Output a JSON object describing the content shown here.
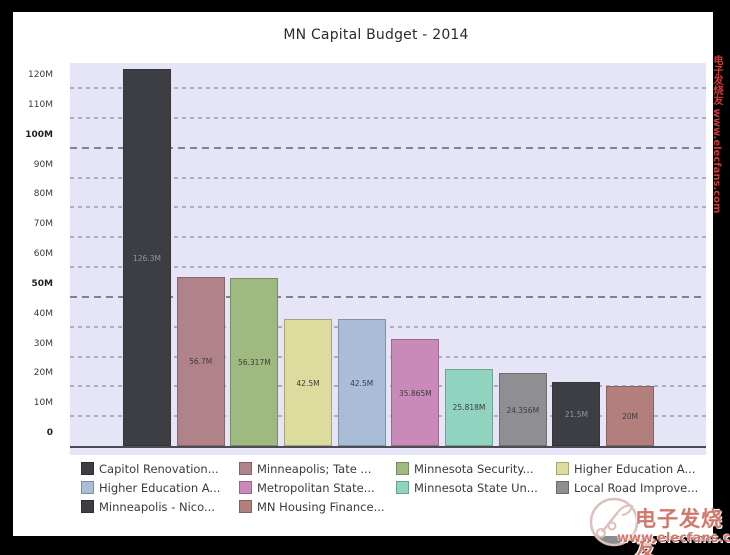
{
  "title": "MN Capital Budget - 2014",
  "watermark": {
    "site_cn": "电子发烧友",
    "site_url": "www.elecfans.com"
  },
  "chart_data": {
    "type": "bar",
    "title": "MN Capital Budget - 2014",
    "xlabel": "",
    "ylabel": "",
    "ylim": [
      0,
      128.4
    ],
    "grid": "dashed-horizontal",
    "legend_position": "bottom",
    "yticks": [
      {
        "label": "0",
        "value": 0,
        "emphasis": true
      },
      {
        "label": "10M",
        "value": 10,
        "emphasis": false
      },
      {
        "label": "20M",
        "value": 20,
        "emphasis": false
      },
      {
        "label": "30M",
        "value": 30,
        "emphasis": false
      },
      {
        "label": "40M",
        "value": 40,
        "emphasis": false
      },
      {
        "label": "50M",
        "value": 50,
        "emphasis": true
      },
      {
        "label": "60M",
        "value": 60,
        "emphasis": false
      },
      {
        "label": "70M",
        "value": 70,
        "emphasis": false
      },
      {
        "label": "80M",
        "value": 80,
        "emphasis": false
      },
      {
        "label": "90M",
        "value": 90,
        "emphasis": false
      },
      {
        "label": "100M",
        "value": 100,
        "emphasis": true
      },
      {
        "label": "110M",
        "value": 110,
        "emphasis": false
      },
      {
        "label": "120M",
        "value": 120,
        "emphasis": false
      }
    ],
    "series": [
      {
        "name": "Capitol Renovation...",
        "value": 126.3,
        "label": "126.3M",
        "color": "#3d3d44",
        "label_color": "#95959c"
      },
      {
        "name": "Minneapolis; Tate ...",
        "value": 56.7,
        "label": "56.7M",
        "color": "#b0838a",
        "label_color": "#3c3c3c"
      },
      {
        "name": "Minnesota Security...",
        "value": 56.317,
        "label": "56.317M",
        "color": "#9fba81",
        "label_color": "#3c3c3c"
      },
      {
        "name": "Higher Education A...",
        "value": 42.5,
        "label": "42.5M",
        "color": "#dcdc9e",
        "label_color": "#3c3c3c"
      },
      {
        "name": "Higher Education A...",
        "value": 42.5,
        "label": "42.5M",
        "color": "#a9bdd9",
        "label_color": "#3c3c3c"
      },
      {
        "name": "Metropolitan State...",
        "value": 35.865,
        "label": "35.865M",
        "color": "#c98aba",
        "label_color": "#3c3c3c"
      },
      {
        "name": "Minnesota State Un...",
        "value": 25.818,
        "label": "25.818M",
        "color": "#90d4c0",
        "label_color": "#3c3c3c"
      },
      {
        "name": "Local Road Improve...",
        "value": 24.356,
        "label": "24.356M",
        "color": "#8f8f92",
        "label_color": "#3c3c3c"
      },
      {
        "name": "Minneapolis - Nico...",
        "value": 21.5,
        "label": "21.5M",
        "color": "#3d3d44",
        "label_color": "#95959c"
      },
      {
        "name": "MN Housing Finance...",
        "value": 20,
        "label": "20M",
        "color": "#b37f7d",
        "label_color": "#3c3c3c"
      }
    ]
  }
}
